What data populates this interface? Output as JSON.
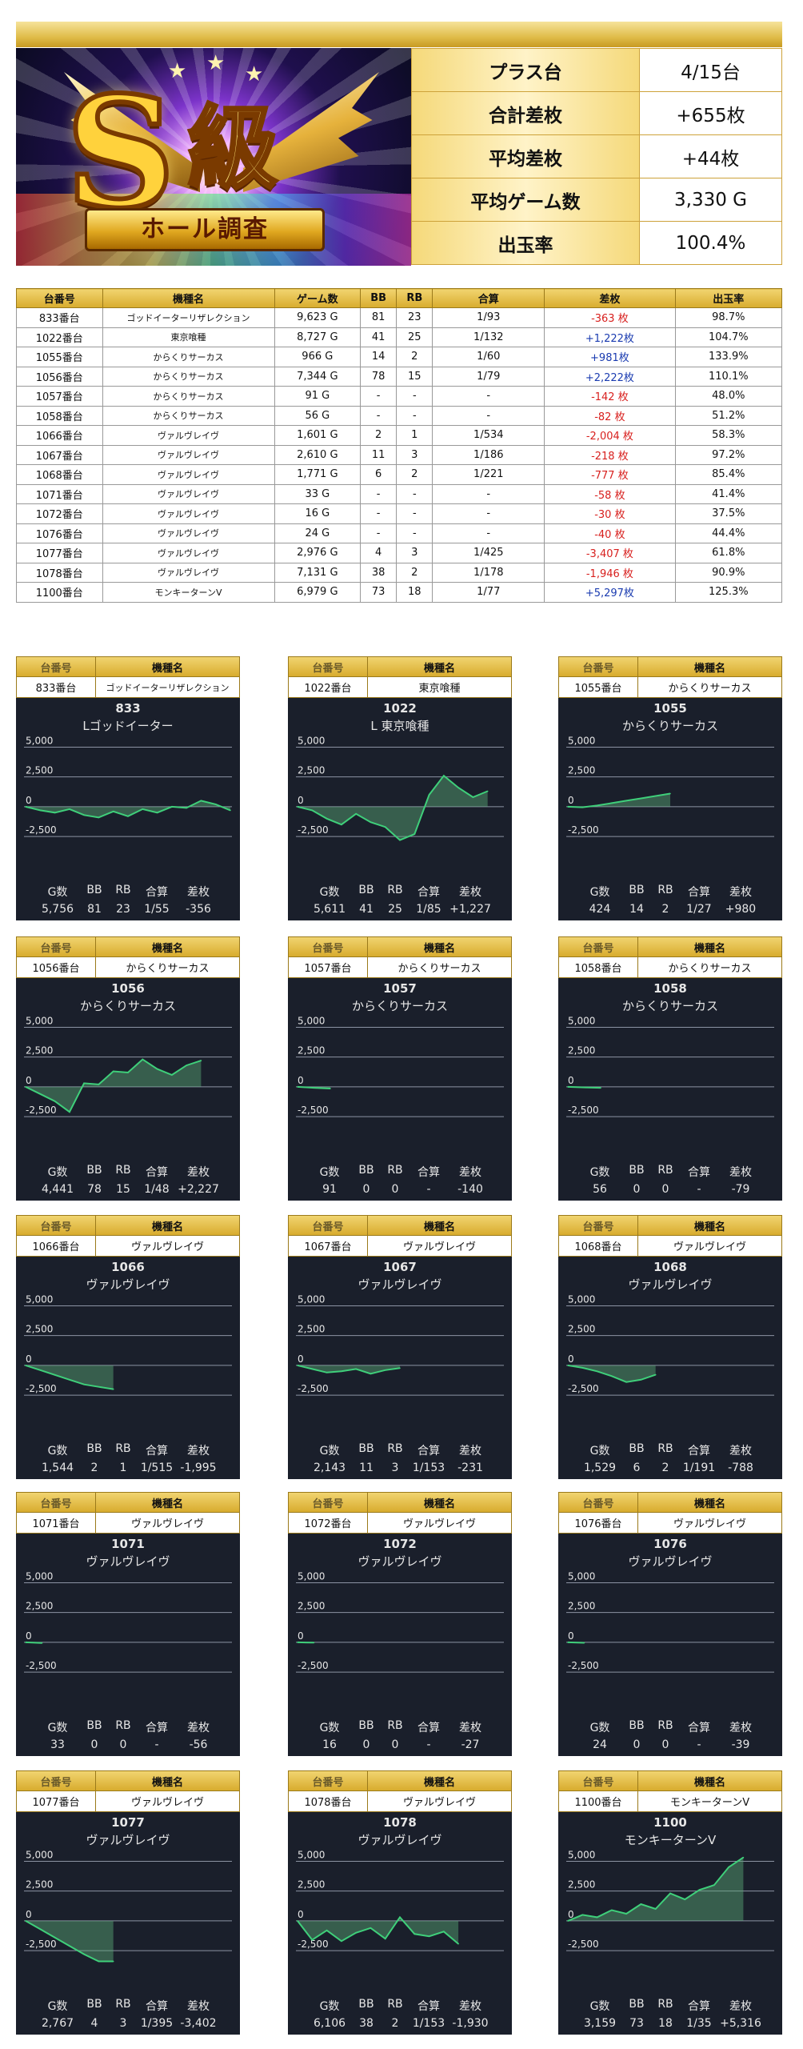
{
  "header": {
    "banner_big": "S",
    "banner_kyu": "級",
    "banner_ribbon": "ホール調査",
    "summary": [
      {
        "label": "プラス台",
        "value": "4/15台"
      },
      {
        "label": "合計差枚",
        "value": "+655枚"
      },
      {
        "label": "平均差枚",
        "value": "+44枚"
      },
      {
        "label": "平均ゲーム数",
        "value": "3,330 G"
      },
      {
        "label": "出玉率",
        "value": "100.4%"
      }
    ]
  },
  "table": {
    "columns": [
      "台番号",
      "機種名",
      "ゲーム数",
      "BB",
      "RB",
      "合算",
      "差枚",
      "出玉率"
    ],
    "rows": [
      {
        "no": "833番台",
        "machine": "ゴッドイーターリザレクション",
        "games": "9,623 G",
        "bb": "81",
        "rb": "23",
        "combined": "1/93",
        "diff": "-363 枚",
        "sign": "neg",
        "rate": "98.7%"
      },
      {
        "no": "1022番台",
        "machine": "東京喰種",
        "games": "8,727 G",
        "bb": "41",
        "rb": "25",
        "combined": "1/132",
        "diff": "+1,222枚",
        "sign": "pos",
        "rate": "104.7%"
      },
      {
        "no": "1055番台",
        "machine": "からくりサーカス",
        "games": "966 G",
        "bb": "14",
        "rb": "2",
        "combined": "1/60",
        "diff": "+981枚",
        "sign": "pos",
        "rate": "133.9%"
      },
      {
        "no": "1056番台",
        "machine": "からくりサーカス",
        "games": "7,344 G",
        "bb": "78",
        "rb": "15",
        "combined": "1/79",
        "diff": "+2,222枚",
        "sign": "pos",
        "rate": "110.1%"
      },
      {
        "no": "1057番台",
        "machine": "からくりサーカス",
        "games": "91 G",
        "bb": "-",
        "rb": "-",
        "combined": "-",
        "diff": "-142 枚",
        "sign": "neg",
        "rate": "48.0%"
      },
      {
        "no": "1058番台",
        "machine": "からくりサーカス",
        "games": "56 G",
        "bb": "-",
        "rb": "-",
        "combined": "-",
        "diff": "-82 枚",
        "sign": "neg",
        "rate": "51.2%"
      },
      {
        "no": "1066番台",
        "machine": "ヴァルヴレイヴ",
        "games": "1,601 G",
        "bb": "2",
        "rb": "1",
        "combined": "1/534",
        "diff": "-2,004 枚",
        "sign": "neg",
        "rate": "58.3%"
      },
      {
        "no": "1067番台",
        "machine": "ヴァルヴレイヴ",
        "games": "2,610 G",
        "bb": "11",
        "rb": "3",
        "combined": "1/186",
        "diff": "-218 枚",
        "sign": "neg",
        "rate": "97.2%"
      },
      {
        "no": "1068番台",
        "machine": "ヴァルヴレイヴ",
        "games": "1,771 G",
        "bb": "6",
        "rb": "2",
        "combined": "1/221",
        "diff": "-777 枚",
        "sign": "neg",
        "rate": "85.4%"
      },
      {
        "no": "1071番台",
        "machine": "ヴァルヴレイヴ",
        "games": "33 G",
        "bb": "-",
        "rb": "-",
        "combined": "-",
        "diff": "-58 枚",
        "sign": "neg",
        "rate": "41.4%"
      },
      {
        "no": "1072番台",
        "machine": "ヴァルヴレイヴ",
        "games": "16 G",
        "bb": "-",
        "rb": "-",
        "combined": "-",
        "diff": "-30 枚",
        "sign": "neg",
        "rate": "37.5%"
      },
      {
        "no": "1076番台",
        "machine": "ヴァルヴレイヴ",
        "games": "24 G",
        "bb": "-",
        "rb": "-",
        "combined": "-",
        "diff": "-40 枚",
        "sign": "neg",
        "rate": "44.4%"
      },
      {
        "no": "1077番台",
        "machine": "ヴァルヴレイヴ",
        "games": "2,976 G",
        "bb": "4",
        "rb": "3",
        "combined": "1/425",
        "diff": "-3,407 枚",
        "sign": "neg",
        "rate": "61.8%"
      },
      {
        "no": "1078番台",
        "machine": "ヴァルヴレイヴ",
        "games": "7,131 G",
        "bb": "38",
        "rb": "2",
        "combined": "1/178",
        "diff": "-1,946 枚",
        "sign": "neg",
        "rate": "90.9%"
      },
      {
        "no": "1100番台",
        "machine": "モンキーターンV",
        "games": "6,979 G",
        "bb": "73",
        "rb": "18",
        "combined": "1/77",
        "diff": "+5,297枚",
        "sign": "pos",
        "rate": "125.3%"
      }
    ]
  },
  "card_header": {
    "no_label": "台番号",
    "machine_label": "機種名"
  },
  "stat_labels": [
    "G数",
    "BB",
    "RB",
    "合算",
    "差枚"
  ],
  "y_ticks": [
    "5,000",
    "2,500",
    "0",
    "-2,500"
  ],
  "chart_data": [
    {
      "type": "area",
      "no": "833番台",
      "machine": "ゴッドイーターリザレクション",
      "num": "833",
      "title": "Lゴッドイーター",
      "ylim": [
        -3500,
        5500
      ],
      "values": [
        0,
        -300,
        -500,
        -200,
        -700,
        -900,
        -400,
        -800,
        -200,
        -500,
        0,
        -100,
        500,
        200,
        -300
      ],
      "stats": [
        "5,756",
        "81",
        "23",
        "1/55",
        "-356"
      ]
    },
    {
      "type": "area",
      "no": "1022番台",
      "machine": "東京喰種",
      "num": "1022",
      "title": "L 東京喰種",
      "ylim": [
        -3500,
        5500
      ],
      "values": [
        0,
        -300,
        -1000,
        -1500,
        -600,
        -1300,
        -1700,
        -2800,
        -2300,
        1000,
        2600,
        1600,
        800,
        1300
      ],
      "stats": [
        "5,611",
        "41",
        "25",
        "1/85",
        "+1,227"
      ]
    },
    {
      "type": "area",
      "no": "1055番台",
      "machine": "からくりサーカス",
      "num": "1055",
      "title": "からくりサーカス",
      "ylim": [
        -3500,
        5500
      ],
      "values": [
        0,
        -50,
        100,
        300,
        500,
        700,
        900,
        1100
      ],
      "stats": [
        "424",
        "14",
        "2",
        "1/27",
        "+980"
      ]
    },
    {
      "type": "area",
      "no": "1056番台",
      "machine": "からくりサーカス",
      "num": "1056",
      "title": "からくりサーカス",
      "ylim": [
        -3500,
        5500
      ],
      "values": [
        0,
        -600,
        -1200,
        -2100,
        300,
        200,
        1300,
        1200,
        2300,
        1500,
        1000,
        1800,
        2200
      ],
      "stats": [
        "4,441",
        "78",
        "15",
        "1/48",
        "+2,227"
      ]
    },
    {
      "type": "area",
      "no": "1057番台",
      "machine": "からくりサーカス",
      "num": "1057",
      "title": "からくりサーカス",
      "ylim": [
        -3500,
        5500
      ],
      "values": [
        0,
        -80,
        -140
      ],
      "stats": [
        "91",
        "0",
        "0",
        "-",
        "-140"
      ]
    },
    {
      "type": "area",
      "no": "1058番台",
      "machine": "からくりサーカス",
      "num": "1058",
      "title": "からくりサーカス",
      "ylim": [
        -3500,
        5500
      ],
      "values": [
        0,
        -50,
        -79
      ],
      "stats": [
        "56",
        "0",
        "0",
        "-",
        "-79"
      ]
    },
    {
      "type": "area",
      "no": "1066番台",
      "machine": "ヴァルヴレイヴ",
      "num": "1066",
      "title": "ヴァルヴレイヴ",
      "ylim": [
        -3500,
        5500
      ],
      "values": [
        0,
        -400,
        -800,
        -1200,
        -1600,
        -1800,
        -1995
      ],
      "stats": [
        "1,544",
        "2",
        "1",
        "1/515",
        "-1,995"
      ]
    },
    {
      "type": "area",
      "no": "1067番台",
      "machine": "ヴァルヴレイヴ",
      "num": "1067",
      "title": "ヴァルヴレイヴ",
      "ylim": [
        -3500,
        5500
      ],
      "values": [
        0,
        -300,
        -600,
        -500,
        -300,
        -700,
        -400,
        -231
      ],
      "stats": [
        "2,143",
        "11",
        "3",
        "1/153",
        "-231"
      ]
    },
    {
      "type": "area",
      "no": "1068番台",
      "machine": "ヴァルヴレイヴ",
      "num": "1068",
      "title": "ヴァルヴレイヴ",
      "ylim": [
        -3500,
        5500
      ],
      "values": [
        0,
        -200,
        -500,
        -900,
        -1400,
        -1200,
        -788
      ],
      "stats": [
        "1,529",
        "6",
        "2",
        "1/191",
        "-788"
      ]
    },
    {
      "type": "area",
      "no": "1071番台",
      "machine": "ヴァルヴレイヴ",
      "num": "1071",
      "title": "ヴァルヴレイヴ",
      "ylim": [
        -3500,
        5500
      ],
      "values": [
        0,
        -56
      ],
      "stats": [
        "33",
        "0",
        "0",
        "-",
        "-56"
      ]
    },
    {
      "type": "area",
      "no": "1072番台",
      "machine": "ヴァルヴレイヴ",
      "num": "1072",
      "title": "ヴァルヴレイヴ",
      "ylim": [
        -3500,
        5500
      ],
      "values": [
        0,
        -27
      ],
      "stats": [
        "16",
        "0",
        "0",
        "-",
        "-27"
      ]
    },
    {
      "type": "area",
      "no": "1076番台",
      "machine": "ヴァルヴレイヴ",
      "num": "1076",
      "title": "ヴァルヴレイヴ",
      "ylim": [
        -3500,
        5500
      ],
      "values": [
        0,
        -39
      ],
      "stats": [
        "24",
        "0",
        "0",
        "-",
        "-39"
      ]
    },
    {
      "type": "area",
      "no": "1077番台",
      "machine": "ヴァルヴレイヴ",
      "num": "1077",
      "title": "ヴァルヴレイヴ",
      "ylim": [
        -3500,
        5500
      ],
      "values": [
        0,
        -700,
        -1400,
        -2100,
        -2800,
        -3402,
        -3402
      ],
      "stats": [
        "2,767",
        "4",
        "3",
        "1/395",
        "-3,402"
      ]
    },
    {
      "type": "area",
      "no": "1078番台",
      "machine": "ヴァルヴレイヴ",
      "num": "1078",
      "title": "ヴァルヴレイヴ",
      "ylim": [
        -3500,
        5500
      ],
      "values": [
        0,
        -1600,
        -800,
        -1700,
        -1000,
        -600,
        -1500,
        300,
        -1100,
        -1300,
        -900,
        -1930
      ],
      "stats": [
        "6,106",
        "38",
        "2",
        "1/153",
        "-1,930"
      ]
    },
    {
      "type": "area",
      "no": "1100番台",
      "machine": "モンキーターンV",
      "num": "1100",
      "title": "モンキーターンV",
      "ylim": [
        -3500,
        5500
      ],
      "values": [
        0,
        500,
        300,
        900,
        600,
        1400,
        1000,
        2300,
        1800,
        2600,
        3000,
        4500,
        5316
      ],
      "stats": [
        "3,159",
        "73",
        "18",
        "1/35",
        "+5,316"
      ]
    }
  ]
}
